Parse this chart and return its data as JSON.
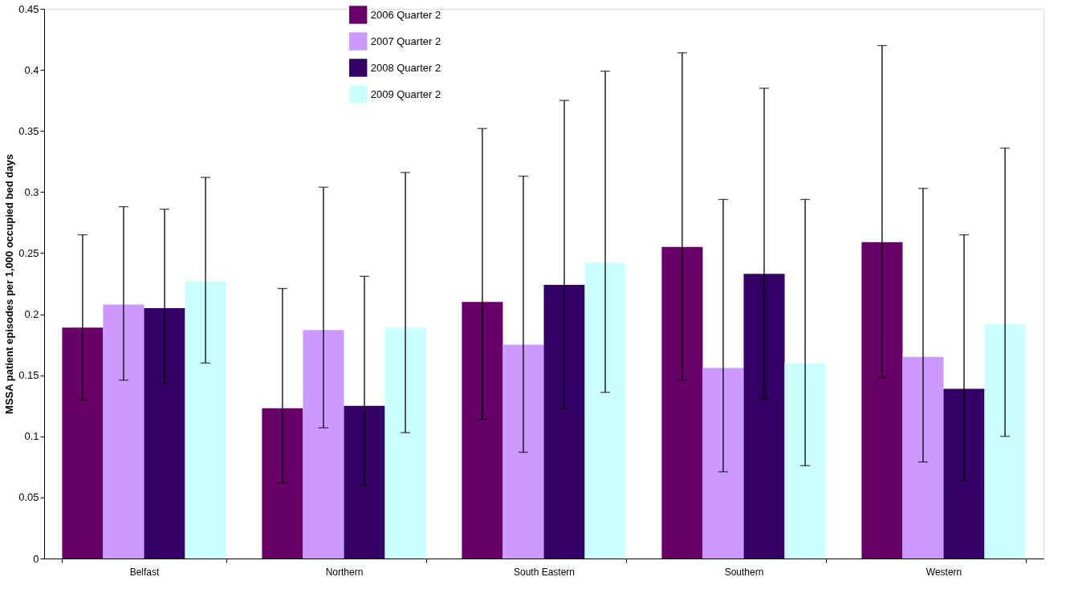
{
  "chart_data": {
    "type": "bar",
    "ylabel": "MSSA patient episodes per 1,000 occupied bed days",
    "categories": [
      "Belfast",
      "Northern",
      "South Eastern",
      "Southern",
      "Western"
    ],
    "series": [
      {
        "name": "2006 Quarter 2",
        "color": "#660066",
        "values": [
          0.189,
          0.123,
          0.21,
          0.255,
          0.259
        ],
        "errors": [
          [
            0.13,
            0.265
          ],
          [
            0.062,
            0.221
          ],
          [
            0.114,
            0.352
          ],
          [
            0.146,
            0.414
          ],
          [
            0.148,
            0.42
          ]
        ]
      },
      {
        "name": "2007 Quarter 2",
        "color": "#cc99ff",
        "values": [
          0.208,
          0.187,
          0.175,
          0.156,
          0.165
        ],
        "errors": [
          [
            0.146,
            0.288
          ],
          [
            0.107,
            0.304
          ],
          [
            0.087,
            0.313
          ],
          [
            0.071,
            0.294
          ],
          [
            0.079,
            0.303
          ]
        ]
      },
      {
        "name": "2008 Quarter 2",
        "color": "#330066",
        "values": [
          0.205,
          0.125,
          0.224,
          0.233,
          0.139
        ],
        "errors": [
          [
            0.143,
            0.286
          ],
          [
            0.06,
            0.231
          ],
          [
            0.123,
            0.375
          ],
          [
            0.131,
            0.385
          ],
          [
            0.064,
            0.265
          ]
        ]
      },
      {
        "name": "2009 Quarter 2",
        "color": "#ccffff",
        "values": [
          0.227,
          0.189,
          0.242,
          0.16,
          0.192
        ],
        "errors": [
          [
            0.16,
            0.312
          ],
          [
            0.103,
            0.316
          ],
          [
            0.136,
            0.399
          ],
          [
            0.076,
            0.294
          ],
          [
            0.1,
            0.336
          ]
        ]
      }
    ],
    "ylim": [
      0,
      0.45
    ],
    "yticks": [
      0,
      0.05,
      0.1,
      0.15,
      0.2,
      0.25,
      0.3,
      0.35,
      0.4,
      0.45
    ],
    "grid": false,
    "legend": "top"
  }
}
